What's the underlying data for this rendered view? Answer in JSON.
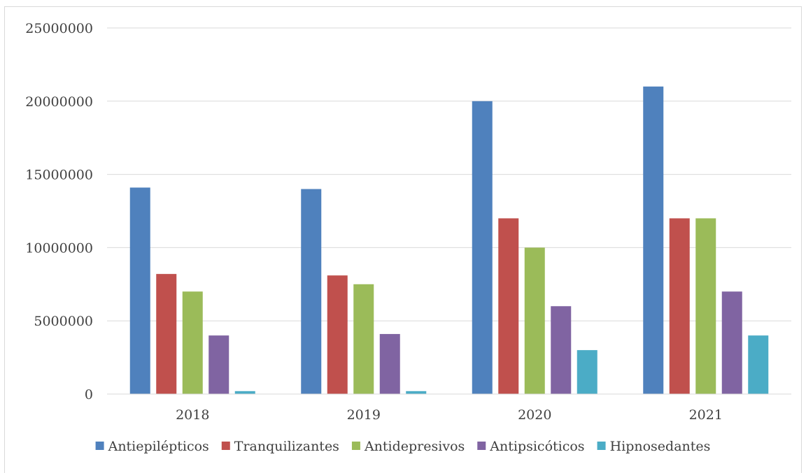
{
  "chart_data": {
    "type": "bar",
    "title": "",
    "xlabel": "",
    "ylabel": "",
    "categories": [
      "2018",
      "2019",
      "2020",
      "2021"
    ],
    "ylim": [
      0,
      25000000
    ],
    "yticks": [
      0,
      5000000,
      10000000,
      15000000,
      20000000,
      25000000
    ],
    "ytick_labels": [
      "0",
      "5000000",
      "10000000",
      "15000000",
      "20000000",
      "25000000"
    ],
    "grid": true,
    "legend_position": "bottom",
    "series": [
      {
        "name": "Antiepilépticos",
        "color": "#4f81bd",
        "values": [
          14100000,
          14000000,
          20000000,
          21000000
        ]
      },
      {
        "name": "Tranquilizantes",
        "color": "#c0504d",
        "values": [
          8200000,
          8100000,
          12000000,
          12000000
        ]
      },
      {
        "name": "Antidepresivos",
        "color": "#9bbb59",
        "values": [
          7000000,
          7500000,
          10000000,
          12000000
        ]
      },
      {
        "name": "Antipsicóticos",
        "color": "#8064a2",
        "values": [
          4000000,
          4100000,
          6000000,
          7000000
        ]
      },
      {
        "name": "Hipnosedantes",
        "color": "#4bacc6",
        "values": [
          200000,
          200000,
          3000000,
          4000000
        ]
      }
    ]
  }
}
